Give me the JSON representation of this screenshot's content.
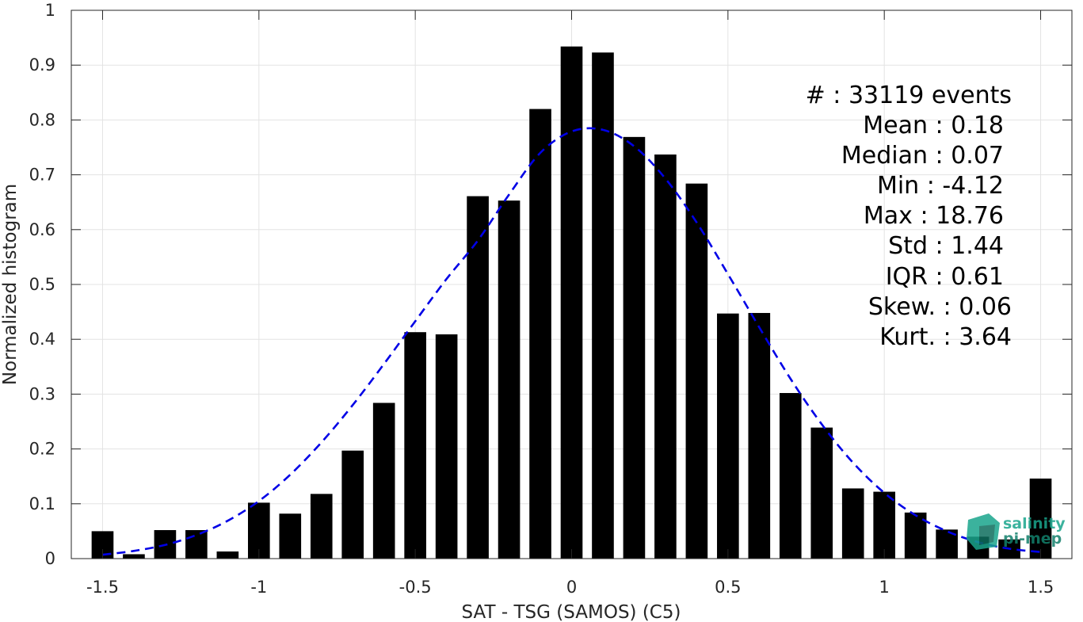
{
  "chart_data": {
    "type": "bar",
    "xlabel": "SAT - TSG (SAMOS) (C5)",
    "ylabel": "Normalized histogram",
    "xlim": [
      -1.6,
      1.6
    ],
    "ylim": [
      0,
      1
    ],
    "grid": true,
    "x_ticks": [
      -1.5,
      -1,
      -0.5,
      0,
      0.5,
      1,
      1.5
    ],
    "x_tick_labels": [
      "-1.5",
      "-1",
      "-0.5",
      "0",
      "0.5",
      "1",
      "1.5"
    ],
    "y_ticks": [
      0,
      0.1,
      0.2,
      0.3,
      0.4,
      0.5,
      0.6,
      0.7,
      0.8,
      0.9,
      1
    ],
    "y_tick_labels": [
      "0",
      "0.1",
      "0.2",
      "0.3",
      "0.4",
      "0.5",
      "0.6",
      "0.7",
      "0.8",
      "0.9",
      "1"
    ],
    "bar_color": "#000000",
    "bar_width": 0.07,
    "x": [
      -1.5,
      -1.4,
      -1.3,
      -1.2,
      -1.1,
      -1.0,
      -0.9,
      -0.8,
      -0.7,
      -0.6,
      -0.5,
      -0.4,
      -0.3,
      -0.2,
      -0.1,
      0.0,
      0.1,
      0.2,
      0.3,
      0.4,
      0.5,
      0.6,
      0.7,
      0.8,
      0.9,
      1.0,
      1.1,
      1.2,
      1.3,
      1.4,
      1.5
    ],
    "values": [
      0.05,
      0.008,
      0.052,
      0.052,
      0.013,
      0.102,
      0.082,
      0.118,
      0.197,
      0.284,
      0.413,
      0.409,
      0.661,
      0.653,
      0.82,
      0.934,
      0.923,
      0.769,
      0.737,
      0.684,
      0.447,
      0.448,
      0.302,
      0.239,
      0.128,
      0.122,
      0.084,
      0.053,
      0.04,
      0.035,
      0.146
    ],
    "fit_curve": {
      "style": "dashed",
      "color": "#0000e6",
      "x": [
        -1.5,
        -1.4,
        -1.3,
        -1.2,
        -1.1,
        -1.0,
        -0.9,
        -0.8,
        -0.7,
        -0.6,
        -0.5,
        -0.4,
        -0.3,
        -0.2,
        -0.1,
        0.0,
        0.1,
        0.2,
        0.3,
        0.4,
        0.5,
        0.6,
        0.7,
        0.8,
        0.9,
        1.0,
        1.1,
        1.2,
        1.3,
        1.4,
        1.5
      ],
      "y": [
        0.007,
        0.014,
        0.025,
        0.043,
        0.069,
        0.105,
        0.153,
        0.212,
        0.28,
        0.355,
        0.433,
        0.51,
        0.58,
        0.664,
        0.74,
        0.779,
        0.782,
        0.752,
        0.693,
        0.613,
        0.519,
        0.422,
        0.328,
        0.245,
        0.175,
        0.12,
        0.079,
        0.05,
        0.03,
        0.018,
        0.012
      ]
    }
  },
  "stats": [
    "#  : 33119 events",
    "Mean : 0.18",
    "Median : 0.07",
    "Min : -4.12",
    "Max : 18.76",
    "Std : 1.44",
    "IQR : 0.61",
    "Skew. : 0.06",
    "Kurt. : 3.64"
  ],
  "logo": {
    "line1": "salinity",
    "line2": "pi-mep",
    "color": "#1aa58c"
  }
}
